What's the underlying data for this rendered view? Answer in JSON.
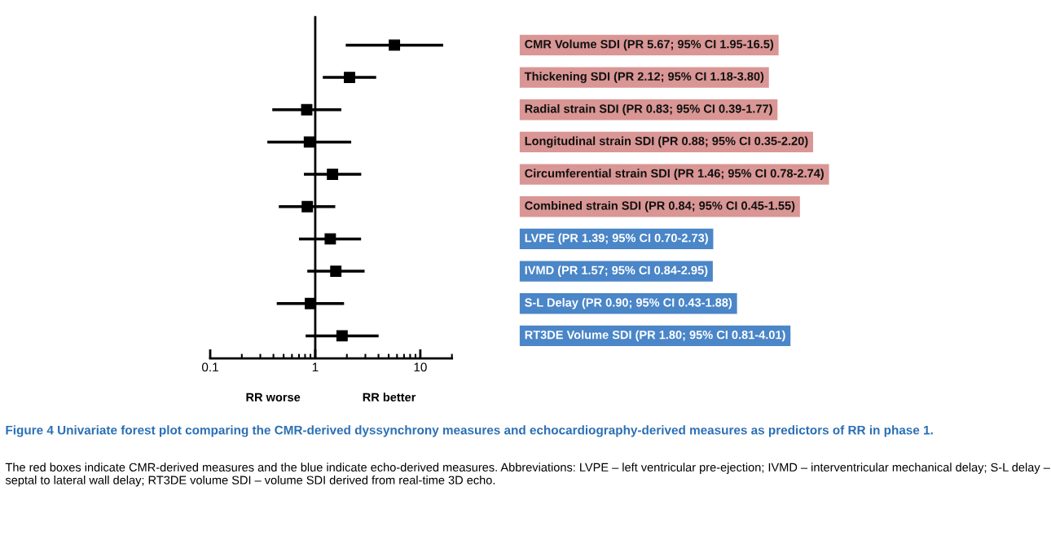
{
  "chart_data": {
    "type": "scatter",
    "orientation": "horizontal",
    "title": "Figure 4 Univariate forest plot comparing the CMR-derived dyssynchrony measures and echocardiography-derived measures as predictors of RR in phase 1.",
    "categories": [
      "CMR Volume SDI (PR 5.67; 95% CI 1.95-16.5)",
      "Thickening SDI (PR 2.12; 95% CI 1.18-3.80)",
      "Radial strain SDI (PR 0.83; 95% CI 0.39-1.77)",
      "Longitudinal strain SDI (PR 0.88; 95% CI 0.35-2.20)",
      "Circumferential strain SDI (PR 1.46; 95% CI 0.78-2.74)",
      "Combined strain SDI (PR 0.84; 95% CI 0.45-1.55)",
      "LVPE (PR 1.39; 95% CI 0.70-2.73)",
      "IVMD (PR 1.57; 95% CI 0.84-2.95)",
      "S-L Delay (PR 0.90; 95% CI 0.43-1.88)",
      "RT3DE Volume SDI (PR 1.80; 95% CI 0.81-4.01)"
    ],
    "colors": [
      "#d99694",
      "#d99694",
      "#d99694",
      "#d99694",
      "#d99694",
      "#d99694",
      "#4a86c8",
      "#4a86c8",
      "#4a86c8",
      "#4a86c8"
    ],
    "series": [
      {
        "color": "#000000",
        "values": [
          5.67,
          2.12,
          0.83,
          0.88,
          1.46,
          0.84,
          1.39,
          1.57,
          0.9,
          1.8
        ],
        "errors": [
          [
            1.95,
            16.5
          ],
          [
            1.18,
            3.8
          ],
          [
            0.39,
            1.77
          ],
          [
            0.35,
            2.2
          ],
          [
            0.78,
            2.74
          ],
          [
            0.45,
            1.55
          ],
          [
            0.7,
            2.73
          ],
          [
            0.84,
            2.95
          ],
          [
            0.43,
            1.88
          ],
          [
            0.81,
            4.01
          ]
        ]
      }
    ],
    "log": "x",
    "xlim": [
      0.1,
      20
    ],
    "xticks": [
      0.1,
      1,
      10
    ],
    "marker": "square",
    "grid": false,
    "legend": false,
    "tick_labels": "x",
    "ref_lines": [
      {
        "axis": "x",
        "value": 1,
        "color": "#000000"
      }
    ],
    "annotations": [
      "RR worse",
      "RR better",
      "The red boxes indicate CMR-derived measures and the blue indicate echo-derived measures. Abbreviations: LVPE – left ventricular pre-ejection; IVMD – interventricular mechanical delay; S-L delay – septal to lateral wall delay; RT3DE volume SDI – volume SDI derived from real-time 3D echo."
    ]
  }
}
